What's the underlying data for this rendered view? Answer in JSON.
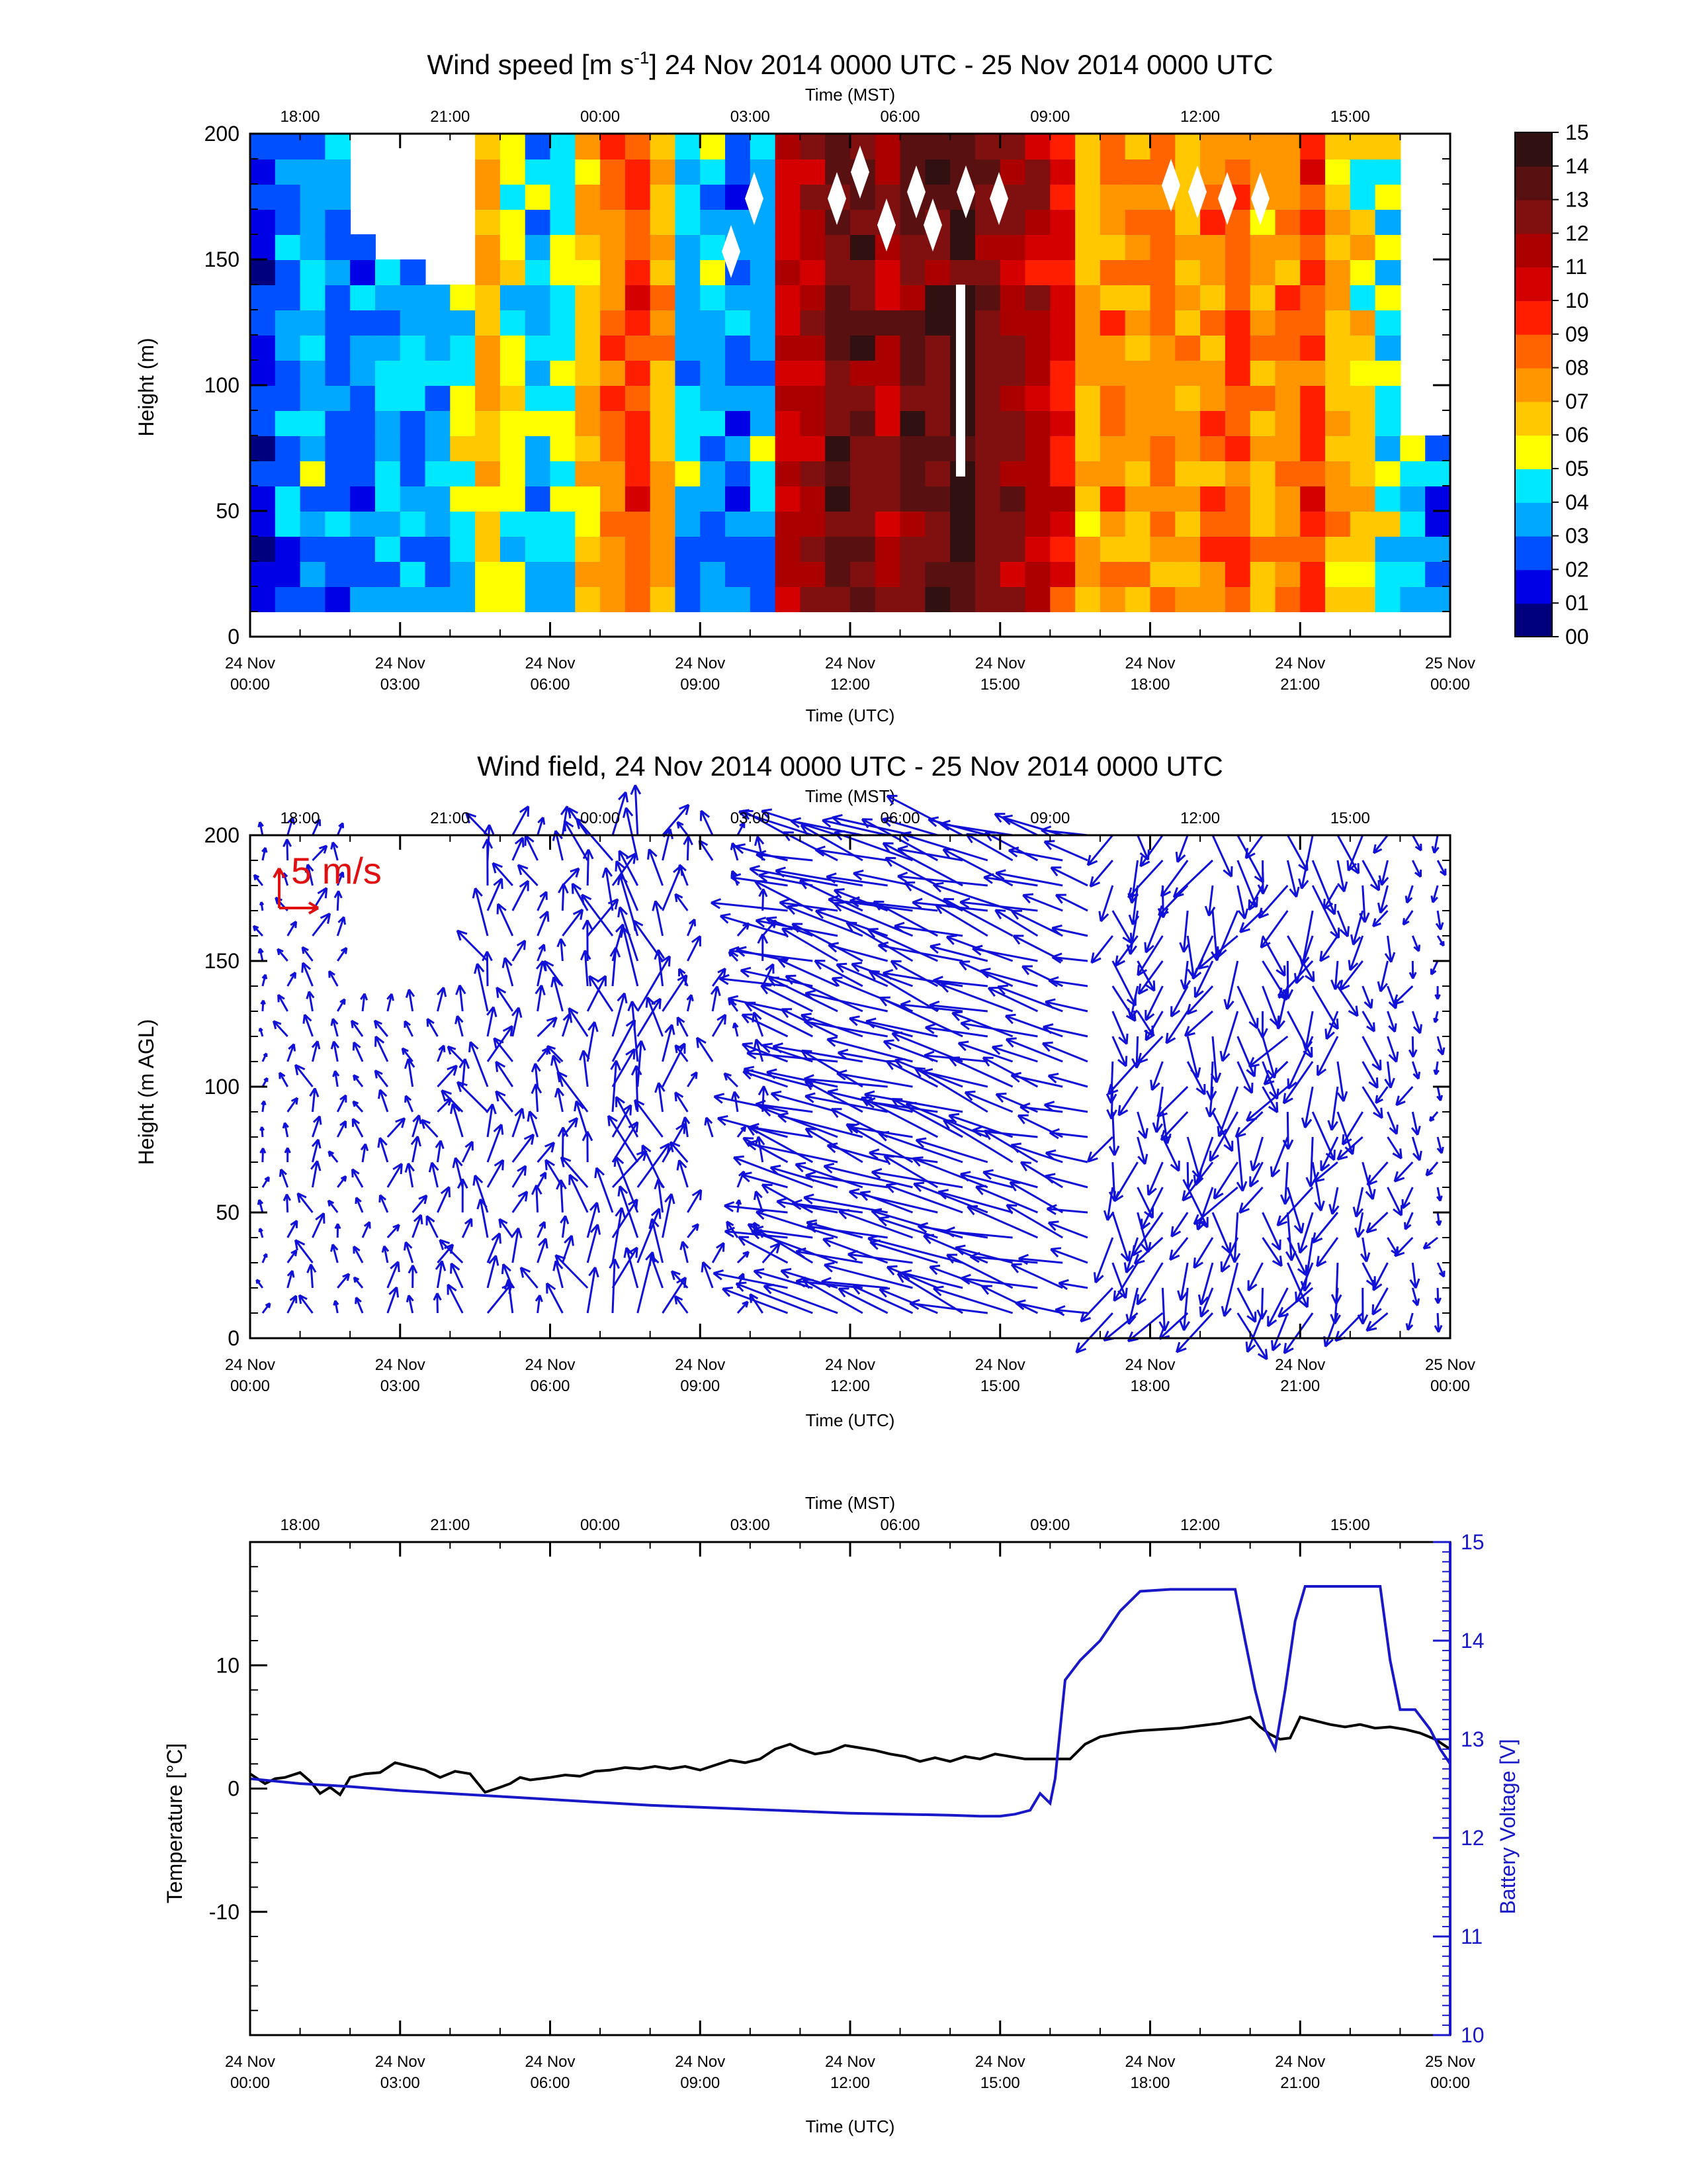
{
  "chart_data": [
    {
      "type": "heatmap",
      "title_main": "Wind speed [m s",
      "title_sup": "-1",
      "title_rest": "] 24 Nov 2014 0000 UTC - 25 Nov 2014 0000 UTC",
      "xlabel": "Time (UTC)",
      "x2label": "Time (MST)",
      "ylabel": "Height (m)",
      "x_ticks": [
        "24 Nov|00:00",
        "24 Nov|03:00",
        "24 Nov|06:00",
        "24 Nov|09:00",
        "24 Nov|12:00",
        "24 Nov|15:00",
        "24 Nov|18:00",
        "24 Nov|21:00",
        "25 Nov|00:00"
      ],
      "x2_ticks": [
        "18:00",
        "21:00",
        "00:00",
        "03:00",
        "06:00",
        "09:00",
        "12:00",
        "15:00"
      ],
      "y_ticks": [
        "0",
        "50",
        "100",
        "150",
        "200"
      ],
      "xlim_hours": [
        0,
        24
      ],
      "ylim": [
        0,
        200
      ],
      "colorbar_ticks": [
        "00",
        "01",
        "02",
        "03",
        "04",
        "05",
        "06",
        "07",
        "08",
        "09",
        "10",
        "11",
        "12",
        "13",
        "14",
        "15"
      ],
      "colorbar_colors": [
        "#00007f",
        "#0000e6",
        "#0050ff",
        "#00a8ff",
        "#00e8ff",
        "#ffff00",
        "#ffc800",
        "#ff9600",
        "#ff6400",
        "#ff1e00",
        "#d40000",
        "#aa0000",
        "#801010",
        "#581010",
        "#301010"
      ],
      "wind_speed_columns": [
        {
          "hour": 0.0,
          "speed": 2
        },
        {
          "hour": 0.5,
          "speed": 3
        },
        {
          "hour": 1.0,
          "speed": 4
        },
        {
          "hour": 1.5,
          "speed": 3
        },
        {
          "hour": 2.0,
          "speed": 3
        },
        {
          "hour": 2.5,
          "speed": 4
        },
        {
          "hour": 3.0,
          "speed": 4
        },
        {
          "hour": 3.5,
          "speed": 4
        },
        {
          "hour": 4.0,
          "speed": 5
        },
        {
          "hour": 4.5,
          "speed": 7
        },
        {
          "hour": 5.0,
          "speed": 5
        },
        {
          "hour": 5.5,
          "speed": 4
        },
        {
          "hour": 6.0,
          "speed": 5
        },
        {
          "hour": 6.5,
          "speed": 7
        },
        {
          "hour": 7.0,
          "speed": 8
        },
        {
          "hour": 7.5,
          "speed": 9
        },
        {
          "hour": 8.0,
          "speed": 7
        },
        {
          "hour": 8.5,
          "speed": 4
        },
        {
          "hour": 9.0,
          "speed": 4
        },
        {
          "hour": 9.5,
          "speed": 3
        },
        {
          "hour": 10.0,
          "speed": 4
        },
        {
          "hour": 10.5,
          "speed": 11
        },
        {
          "hour": 11.0,
          "speed": 12
        },
        {
          "hour": 11.5,
          "speed": 13
        },
        {
          "hour": 12.0,
          "speed": 13
        },
        {
          "hour": 12.5,
          "speed": 12
        },
        {
          "hour": 13.0,
          "speed": 13
        },
        {
          "hour": 13.5,
          "speed": 13
        },
        {
          "hour": 14.0,
          "speed": 14
        },
        {
          "hour": 14.5,
          "speed": 13
        },
        {
          "hour": 15.0,
          "speed": 12
        },
        {
          "hour": 15.5,
          "speed": 11
        },
        {
          "hour": 16.0,
          "speed": 10
        },
        {
          "hour": 16.5,
          "speed": 7
        },
        {
          "hour": 17.0,
          "speed": 8
        },
        {
          "hour": 17.5,
          "speed": 7
        },
        {
          "hour": 18.0,
          "speed": 8
        },
        {
          "hour": 18.5,
          "speed": 7
        },
        {
          "hour": 19.0,
          "speed": 8
        },
        {
          "hour": 19.5,
          "speed": 9
        },
        {
          "hour": 20.0,
          "speed": 7
        },
        {
          "hour": 20.5,
          "speed": 8
        },
        {
          "hour": 21.0,
          "speed": 9
        },
        {
          "hour": 21.5,
          "speed": 7
        },
        {
          "hour": 22.0,
          "speed": 6
        },
        {
          "hour": 22.5,
          "speed": 5
        },
        {
          "hour": 23.0,
          "speed": 4
        },
        {
          "hour": 23.5,
          "speed": 3
        }
      ]
    },
    {
      "type": "vector",
      "title": "Wind field, 24 Nov 2014 0000 UTC - 25 Nov 2014 0000 UTC",
      "xlabel": "Time (UTC)",
      "x2label": "Time (MST)",
      "ylabel": "Height (m AGL)",
      "x_ticks": [
        "24 Nov|00:00",
        "24 Nov|03:00",
        "24 Nov|06:00",
        "24 Nov|09:00",
        "24 Nov|12:00",
        "24 Nov|15:00",
        "24 Nov|18:00",
        "24 Nov|21:00",
        "25 Nov|00:00"
      ],
      "x2_ticks": [
        "18:00",
        "21:00",
        "00:00",
        "03:00",
        "06:00",
        "09:00",
        "12:00",
        "15:00"
      ],
      "y_ticks": [
        "0",
        "50",
        "100",
        "150",
        "200"
      ],
      "reference_vector_label": "5 m/s",
      "reference_color": "#e01010",
      "arrow_color": "#1010d8",
      "xlim_hours": [
        0,
        24
      ],
      "ylim": [
        0,
        200
      ]
    },
    {
      "type": "line",
      "xlabel": "Time (UTC)",
      "x2label": "Time (MST)",
      "ylabel": "Temperature [°C]",
      "y2label": "Battery Voltage [V]",
      "x_ticks": [
        "24 Nov|00:00",
        "24 Nov|03:00",
        "24 Nov|06:00",
        "24 Nov|09:00",
        "24 Nov|12:00",
        "24 Nov|15:00",
        "24 Nov|18:00",
        "24 Nov|21:00",
        "25 Nov|00:00"
      ],
      "x2_ticks": [
        "18:00",
        "21:00",
        "00:00",
        "03:00",
        "06:00",
        "09:00",
        "12:00",
        "15:00"
      ],
      "y_ticks": [
        "-10",
        "0",
        "10"
      ],
      "y2_ticks": [
        "10",
        "11",
        "12",
        "13",
        "14",
        "15"
      ],
      "xlim_hours": [
        0,
        24
      ],
      "ylim": [
        -20,
        20
      ],
      "y2lim": [
        10,
        15
      ],
      "series": [
        {
          "name": "Temperature [°C]",
          "color": "#000000",
          "axis": "left",
          "x": [
            0,
            0.3,
            0.5,
            0.7,
            1.0,
            1.2,
            1.4,
            1.6,
            1.8,
            2.0,
            2.3,
            2.6,
            2.9,
            3.2,
            3.5,
            3.8,
            4.1,
            4.4,
            4.7,
            5.0,
            5.2,
            5.4,
            5.6,
            5.8,
            6.0,
            6.3,
            6.6,
            6.9,
            7.2,
            7.5,
            7.8,
            8.1,
            8.4,
            8.7,
            9.0,
            9.3,
            9.6,
            9.9,
            10.2,
            10.5,
            10.8,
            11.0,
            11.3,
            11.6,
            11.9,
            12.2,
            12.5,
            12.8,
            13.1,
            13.4,
            13.7,
            14.0,
            14.3,
            14.6,
            14.9,
            15.2,
            15.5,
            15.8,
            16.1,
            16.4,
            16.7,
            17.0,
            17.4,
            17.8,
            18.2,
            18.6,
            19.0,
            19.4,
            19.8,
            20.0,
            20.2,
            20.4,
            20.6,
            20.8,
            21.0,
            21.3,
            21.6,
            21.9,
            22.2,
            22.5,
            22.8,
            23.1,
            23.4,
            23.7,
            24.0
          ],
          "y": [
            1.2,
            0.4,
            0.8,
            0.9,
            1.3,
            0.6,
            -0.4,
            0.1,
            -0.5,
            0.9,
            1.2,
            1.3,
            2.1,
            1.8,
            1.5,
            0.9,
            1.4,
            1.2,
            -0.3,
            0.1,
            0.4,
            0.9,
            0.7,
            0.8,
            0.9,
            1.1,
            1.0,
            1.4,
            1.5,
            1.7,
            1.6,
            1.8,
            1.6,
            1.8,
            1.5,
            1.9,
            2.3,
            2.1,
            2.4,
            3.2,
            3.6,
            3.2,
            2.8,
            3.0,
            3.5,
            3.3,
            3.1,
            2.8,
            2.6,
            2.2,
            2.5,
            2.2,
            2.6,
            2.4,
            2.8,
            2.6,
            2.4,
            2.4,
            2.4,
            2.4,
            3.6,
            4.2,
            4.5,
            4.7,
            4.8,
            4.9,
            5.1,
            5.3,
            5.6,
            5.8,
            5.0,
            4.4,
            4.0,
            4.1,
            5.8,
            5.5,
            5.2,
            5.0,
            5.2,
            4.9,
            5.0,
            4.8,
            4.5,
            4.0,
            3.2
          ]
        },
        {
          "name": "Battery Voltage [V]",
          "color": "#1818c8",
          "axis": "right",
          "x": [
            0,
            1,
            2,
            3,
            4,
            5,
            6,
            7,
            8,
            9,
            10,
            11,
            12,
            13,
            14,
            14.6,
            15.0,
            15.3,
            15.6,
            15.8,
            16.0,
            16.1,
            16.3,
            16.6,
            17.0,
            17.4,
            17.8,
            18.4,
            19.0,
            19.7,
            19.9,
            20.1,
            20.3,
            20.5,
            20.7,
            20.9,
            21.1,
            21.5,
            21.9,
            22.3,
            22.6,
            22.8,
            23.0,
            23.3,
            23.6,
            23.8,
            24.0
          ],
          "y": [
            12.6,
            12.55,
            12.52,
            12.48,
            12.45,
            12.42,
            12.39,
            12.36,
            12.33,
            12.31,
            12.29,
            12.27,
            12.25,
            12.24,
            12.23,
            12.22,
            12.22,
            12.24,
            12.28,
            12.45,
            12.35,
            12.6,
            13.6,
            13.8,
            14.0,
            14.3,
            14.5,
            14.52,
            14.52,
            14.52,
            14.0,
            13.5,
            13.1,
            12.9,
            13.5,
            14.2,
            14.55,
            14.55,
            14.55,
            14.55,
            14.55,
            13.8,
            13.3,
            13.3,
            13.1,
            12.9,
            12.75
          ]
        }
      ]
    }
  ]
}
